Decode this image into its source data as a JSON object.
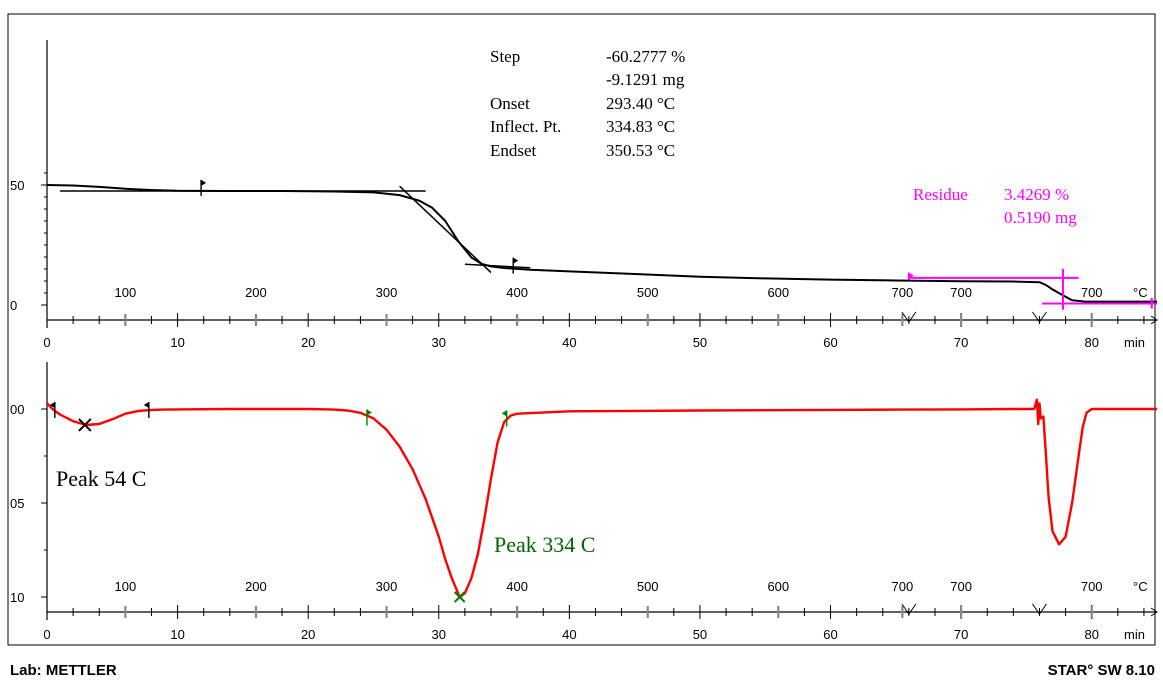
{
  "footer": {
    "lab": "Lab: METTLER",
    "software": "STAR° SW 8.10"
  },
  "colors": {
    "tga": "#000000",
    "dtg": "#ff0000",
    "residue": "#ff00ff",
    "peak2": "#006600",
    "marker_green": "#008000",
    "axis": "#000000",
    "tick_gray": "#888888"
  },
  "step_results": {
    "rows": [
      {
        "label": "Step",
        "value": "-60.2777 %"
      },
      {
        "label": "",
        "value": "-9.1291 mg"
      },
      {
        "label": "Onset",
        "value": "293.40 °C"
      },
      {
        "label": "Inflect. Pt.",
        "value": "334.83 °C"
      },
      {
        "label": "Endset",
        "value": "350.53 °C"
      }
    ]
  },
  "residue": {
    "label": "Residue",
    "percent": "3.4269 %",
    "mass": "0.5190 mg"
  },
  "annotations": {
    "peak1": "Peak 54 C",
    "peak2": "Peak 334 C"
  },
  "chart_data": [
    {
      "type": "line",
      "ylabel": "%",
      "y_ticks": [
        "50",
        "0"
      ],
      "y_tick_values": [
        50,
        0
      ],
      "ylim": [
        -5,
        55
      ],
      "x_time_ticks": [
        "0",
        "10",
        "20",
        "30",
        "40",
        "50",
        "60",
        "70",
        "80"
      ],
      "x_time_unit": "min",
      "xlim": [
        0,
        85
      ],
      "temp_ticks": [
        {
          "t": 6,
          "label": "100"
        },
        {
          "t": 16,
          "label": "200"
        },
        {
          "t": 26,
          "label": "300"
        },
        {
          "t": 36,
          "label": "400"
        },
        {
          "t": 46,
          "label": "500"
        },
        {
          "t": 56,
          "label": "600"
        },
        {
          "t": 65.5,
          "label": "700"
        },
        {
          "t": 70,
          "label": "700"
        },
        {
          "t": 80,
          "label": "700"
        }
      ],
      "temp_tick_right": "°C",
      "segment_marks": [
        66,
        76
      ],
      "series": [
        {
          "x": [
            0,
            2,
            4,
            6,
            8,
            10,
            14,
            18,
            22,
            25,
            27,
            28.5,
            29.5,
            30.5,
            31.5,
            32.5,
            33.3,
            34,
            35,
            37,
            40,
            45,
            50,
            55,
            60,
            65,
            70,
            74,
            76,
            76.5,
            77,
            77.8,
            78.5,
            79.5,
            82,
            85
          ],
          "y": [
            50,
            49.8,
            49.2,
            48.4,
            47.9,
            47.6,
            47.5,
            47.5,
            47.3,
            46.9,
            45.8,
            43.5,
            40.5,
            35,
            26.5,
            19.8,
            17.1,
            16.1,
            15.4,
            14.7,
            14,
            12.9,
            11.8,
            11.1,
            10.6,
            10.2,
            9.9,
            9.8,
            9.5,
            8.3,
            6.5,
            4,
            2,
            1.4,
            1.4,
            1.4
          ]
        }
      ]
    },
    {
      "type": "line",
      "y_ticks": [
        "00",
        "05",
        "10"
      ],
      "y_tick_values": [
        0,
        -0.05,
        -0.1
      ],
      "ylim": [
        -0.104,
        0.005
      ],
      "x_time_ticks": [
        "0",
        "10",
        "20",
        "30",
        "40",
        "50",
        "60",
        "70",
        "80"
      ],
      "x_time_unit": "min",
      "xlim": [
        0,
        85
      ],
      "temp_ticks": [
        {
          "t": 6,
          "label": "100"
        },
        {
          "t": 16,
          "label": "200"
        },
        {
          "t": 26,
          "label": "300"
        },
        {
          "t": 36,
          "label": "400"
        },
        {
          "t": 46,
          "label": "500"
        },
        {
          "t": 56,
          "label": "600"
        },
        {
          "t": 65.5,
          "label": "700"
        },
        {
          "t": 70,
          "label": "700"
        },
        {
          "t": 80,
          "label": "700"
        }
      ],
      "temp_tick_right": "°C",
      "segment_marks": [
        66,
        76
      ],
      "series": [
        {
          "x": [
            0,
            0.5,
            1,
            2,
            3,
            4,
            5,
            6,
            7,
            8,
            9,
            10,
            14,
            18,
            20,
            22,
            23,
            24,
            25,
            26,
            27,
            28,
            29,
            30,
            30.5,
            31,
            31.6,
            32,
            32.5,
            33,
            33.5,
            34,
            34.5,
            35,
            35.5,
            36,
            40,
            50,
            60,
            65,
            70,
            74,
            75.6,
            75.8,
            75.9,
            76,
            76.1,
            76.3,
            76.5,
            76.7,
            77,
            77.5,
            78,
            78.5,
            79,
            79.3,
            79.6,
            80,
            85
          ],
          "y": [
            0.003,
            -0.0005,
            -0.003,
            -0.0065,
            -0.0085,
            -0.008,
            -0.0055,
            -0.0025,
            -0.001,
            -0.0005,
            -0.0003,
            -0.0002,
            0,
            0,
            0,
            -0.0003,
            -0.0008,
            -0.002,
            -0.005,
            -0.011,
            -0.02,
            -0.032,
            -0.048,
            -0.068,
            -0.08,
            -0.09,
            -0.1,
            -0.098,
            -0.09,
            -0.077,
            -0.058,
            -0.037,
            -0.018,
            -0.007,
            -0.0035,
            -0.0025,
            -0.0012,
            -0.0008,
            -0.0005,
            -0.0003,
            -0.0002,
            0,
            0,
            0.005,
            -0.008,
            0.003,
            -0.005,
            -0.004,
            -0.025,
            -0.047,
            -0.065,
            -0.072,
            -0.068,
            -0.05,
            -0.025,
            -0.01,
            -0.002,
            0,
            0
          ]
        }
      ]
    }
  ]
}
